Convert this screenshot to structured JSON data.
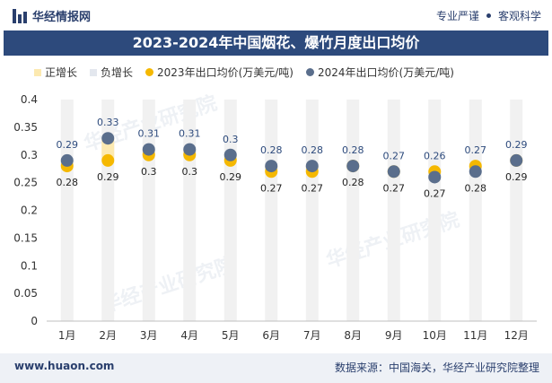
{
  "header": {
    "logo_text": "华经情报网",
    "slogan_left": "专业严谨",
    "slogan_right": "客观科学"
  },
  "chart_data": {
    "type": "line",
    "title": "2023-2024年中国烟花、爆竹月度出口均价",
    "categories": [
      "1月",
      "2月",
      "3月",
      "4月",
      "5月",
      "6月",
      "7月",
      "8月",
      "9月",
      "10月",
      "11月",
      "12月"
    ],
    "ylim": [
      0,
      0.4
    ],
    "yticks": [
      "0",
      "0.05",
      "0.1",
      "0.15",
      "0.2",
      "0.25",
      "0.3",
      "0.35",
      "0.4"
    ],
    "grid": false,
    "legend_position": "top-left",
    "legend": [
      "正增长",
      "负增长",
      "2023年出口均价(万美元/吨)",
      "2024年出口均价(万美元/吨)"
    ],
    "series": [
      {
        "name": "2023年出口均价(万美元/吨)",
        "color": "#f5b800",
        "values": [
          0.28,
          0.29,
          0.3,
          0.3,
          0.29,
          0.27,
          0.27,
          0.28,
          0.27,
          0.27,
          0.28,
          0.29
        ]
      },
      {
        "name": "2024年出口均价(万美元/吨)",
        "color": "#5a6e8c",
        "values": [
          0.29,
          0.33,
          0.31,
          0.31,
          0.3,
          0.28,
          0.28,
          0.28,
          0.27,
          0.26,
          0.27,
          0.29
        ]
      }
    ],
    "growth_colors": {
      "positive": "#fce9b0",
      "negative": "#e3e7ee",
      "bar": "#f1f1f1"
    }
  },
  "footer": {
    "website": "www.huaon.com",
    "source": "数据来源：中国海关，华经产业研究院整理"
  },
  "watermark_text": "华经产业研究院"
}
